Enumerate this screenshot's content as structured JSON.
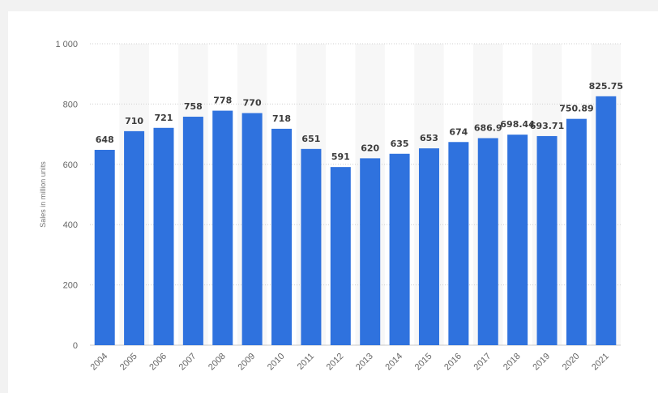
{
  "chart_data": {
    "type": "bar",
    "categories": [
      "2004",
      "2005",
      "2006",
      "2007",
      "2008",
      "2009",
      "2010",
      "2011",
      "2012",
      "2013",
      "2014",
      "2015",
      "2016",
      "2017",
      "2018",
      "2019",
      "2020",
      "2021"
    ],
    "values": [
      648,
      710,
      721,
      758,
      778,
      770,
      718,
      651,
      591,
      620,
      635,
      653,
      674,
      686.9,
      698.44,
      693.71,
      750.89,
      825.75
    ],
    "value_labels": [
      "648",
      "710",
      "721",
      "758",
      "778",
      "770",
      "718",
      "651",
      "591",
      "620",
      "635",
      "653",
      "674",
      "686.9",
      "698.44",
      "693.71",
      "750.89",
      "825.75"
    ],
    "ylabel": "Sales in million units",
    "ylim": [
      0,
      1000
    ],
    "yticks": [
      0,
      200,
      400,
      600,
      800,
      1000
    ],
    "ytick_labels": [
      "0",
      "200",
      "400",
      "600",
      "800",
      "1 000"
    ],
    "grid": true,
    "bar_color": "#2f72de"
  }
}
